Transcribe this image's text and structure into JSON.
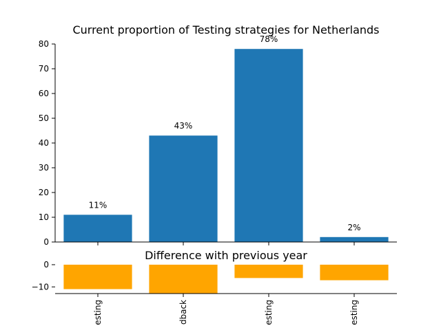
{
  "chart_data": [
    {
      "type": "bar",
      "title": "Current proportion of Testing strategies for Netherlands",
      "xlabel": "",
      "ylabel": "",
      "ylim": [
        0,
        80
      ],
      "yticks": [
        0,
        10,
        20,
        30,
        40,
        50,
        60,
        70,
        80
      ],
      "color": "#1f77b4",
      "values": [
        11,
        43,
        78,
        2
      ],
      "data_labels": [
        "11%",
        "43%",
        "78%",
        "2%"
      ],
      "grid": false
    },
    {
      "type": "bar",
      "title": "Difference with previous year",
      "xlabel": "",
      "ylabel": "",
      "ylim": [
        -13,
        0
      ],
      "yticks": [
        0,
        -10
      ],
      "color": "#ffa500",
      "categories": [
        "esting",
        "dback",
        "esting",
        "esting"
      ],
      "values": [
        -11,
        -13,
        -6,
        -7
      ],
      "grid": false
    }
  ]
}
